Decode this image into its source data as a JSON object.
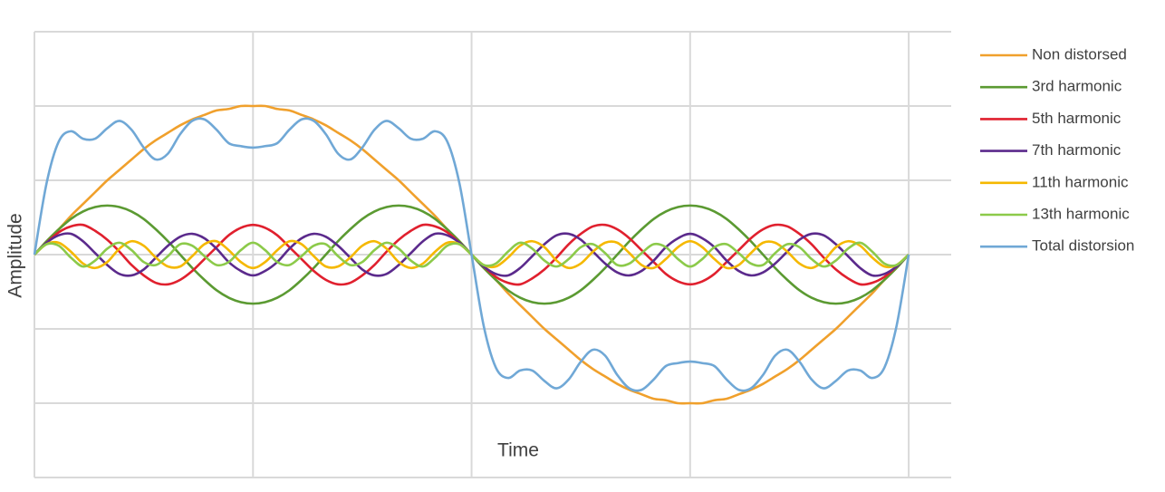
{
  "chart_data": {
    "type": "line",
    "x_label": "Time",
    "y_label": "Amplitude",
    "x": [
      0,
      5,
      10,
      15,
      20,
      25,
      30,
      35,
      40,
      45,
      50,
      55,
      60,
      65,
      70,
      75,
      80,
      85,
      90,
      95,
      100,
      105,
      110,
      115,
      120,
      125,
      130,
      135,
      140,
      145,
      150,
      155,
      160,
      165,
      170,
      175,
      180,
      185,
      190,
      195,
      200,
      205,
      210,
      215,
      220,
      225,
      230,
      235,
      240,
      245,
      250,
      255,
      260,
      265,
      270,
      275,
      280,
      285,
      290,
      295,
      300,
      305,
      310,
      315,
      320,
      325,
      330,
      335,
      340,
      345,
      350,
      355,
      360
    ],
    "xlim": [
      0,
      377.5
    ],
    "xticks": [
      0,
      90,
      180,
      270,
      360
    ],
    "ylim": [
      -1.5,
      1.5
    ],
    "yticks": [
      -1.5,
      -1,
      -0.5,
      0,
      0.5,
      1,
      1.5
    ],
    "grid": true,
    "legend": "right",
    "series": [
      {
        "name": "Non distorsed",
        "color": "#f0a02c",
        "values": [
          0,
          0.09,
          0.17,
          0.26,
          0.34,
          0.42,
          0.5,
          0.57,
          0.64,
          0.71,
          0.77,
          0.82,
          0.87,
          0.91,
          0.94,
          0.97,
          0.98,
          1,
          1,
          1,
          0.98,
          0.97,
          0.94,
          0.91,
          0.87,
          0.82,
          0.77,
          0.71,
          0.64,
          0.57,
          0.5,
          0.42,
          0.34,
          0.26,
          0.17,
          0.09,
          0,
          -0.09,
          -0.17,
          -0.26,
          -0.34,
          -0.42,
          -0.5,
          -0.57,
          -0.64,
          -0.71,
          -0.77,
          -0.82,
          -0.87,
          -0.91,
          -0.94,
          -0.97,
          -0.98,
          -1,
          -1,
          -1,
          -0.98,
          -0.97,
          -0.94,
          -0.91,
          -0.87,
          -0.82,
          -0.77,
          -0.71,
          -0.64,
          -0.57,
          -0.5,
          -0.42,
          -0.34,
          -0.26,
          -0.17,
          -0.09,
          0
        ]
      },
      {
        "name": "3rd harmonic",
        "color": "#5b9a32",
        "values": [
          0,
          0.09,
          0.17,
          0.24,
          0.29,
          0.32,
          0.33,
          0.32,
          0.29,
          0.24,
          0.17,
          0.09,
          0,
          -0.09,
          -0.17,
          -0.24,
          -0.29,
          -0.32,
          -0.33,
          -0.32,
          -0.29,
          -0.24,
          -0.17,
          -0.09,
          0,
          0.09,
          0.17,
          0.24,
          0.29,
          0.32,
          0.33,
          0.32,
          0.29,
          0.24,
          0.17,
          0.09,
          0,
          -0.09,
          -0.17,
          -0.24,
          -0.29,
          -0.32,
          -0.33,
          -0.32,
          -0.29,
          -0.24,
          -0.17,
          -0.09,
          0,
          0.09,
          0.17,
          0.24,
          0.29,
          0.32,
          0.33,
          0.32,
          0.29,
          0.24,
          0.17,
          0.09,
          0,
          -0.09,
          -0.17,
          -0.24,
          -0.29,
          -0.32,
          -0.33,
          -0.32,
          -0.29,
          -0.24,
          -0.17,
          -0.09,
          0
        ]
      },
      {
        "name": "5th harmonic",
        "color": "#e0202e",
        "values": [
          0,
          0.08,
          0.15,
          0.19,
          0.2,
          0.16,
          0.1,
          0.02,
          -0.07,
          -0.14,
          -0.19,
          -0.2,
          -0.17,
          -0.11,
          -0.03,
          0.05,
          0.13,
          0.18,
          0.2,
          0.18,
          0.13,
          0.05,
          -0.03,
          -0.11,
          -0.17,
          -0.2,
          -0.19,
          -0.14,
          -0.07,
          0.02,
          0.1,
          0.16,
          0.2,
          0.19,
          0.15,
          0.08,
          0,
          -0.08,
          -0.15,
          -0.19,
          -0.2,
          -0.16,
          -0.1,
          -0.02,
          0.07,
          0.14,
          0.19,
          0.2,
          0.17,
          0.11,
          0.03,
          -0.05,
          -0.13,
          -0.18,
          -0.2,
          -0.18,
          -0.13,
          -0.05,
          0.03,
          0.11,
          0.17,
          0.2,
          0.19,
          0.14,
          0.07,
          -0.02,
          -0.1,
          -0.16,
          -0.2,
          -0.19,
          -0.15,
          -0.08,
          0
        ]
      },
      {
        "name": "7th harmonic",
        "color": "#5b2a8c",
        "values": [
          0,
          0.08,
          0.13,
          0.14,
          0.09,
          0.01,
          -0.07,
          -0.13,
          -0.14,
          -0.1,
          -0.02,
          0.06,
          0.12,
          0.14,
          0.11,
          0.04,
          -0.05,
          -0.11,
          -0.14,
          -0.11,
          -0.05,
          0.04,
          0.11,
          0.14,
          0.12,
          0.06,
          -0.02,
          -0.1,
          -0.14,
          -0.13,
          -0.07,
          0.01,
          0.09,
          0.14,
          0.13,
          0.08,
          0,
          -0.08,
          -0.13,
          -0.14,
          -0.09,
          -0.01,
          0.07,
          0.13,
          0.14,
          0.1,
          0.02,
          -0.06,
          -0.12,
          -0.14,
          -0.11,
          -0.04,
          0.05,
          0.11,
          0.14,
          0.11,
          0.05,
          -0.04,
          -0.11,
          -0.14,
          -0.12,
          -0.06,
          0.02,
          0.1,
          0.14,
          0.13,
          0.07,
          -0.01,
          -0.09,
          -0.14,
          -0.13,
          -0.08,
          0
        ]
      },
      {
        "name": "11th harmonic",
        "color": "#f5b800",
        "values": [
          0,
          0.07,
          0.08,
          0.02,
          -0.06,
          -0.09,
          -0.05,
          0.04,
          0.09,
          0.06,
          -0.02,
          -0.08,
          -0.08,
          -0.01,
          0.07,
          0.09,
          0.03,
          -0.05,
          -0.09,
          -0.05,
          0.03,
          0.09,
          0.07,
          -0.01,
          -0.08,
          -0.08,
          -0.02,
          0.06,
          0.09,
          0.04,
          -0.05,
          -0.09,
          -0.06,
          0.02,
          0.08,
          0.07,
          0,
          -0.07,
          -0.08,
          -0.02,
          0.06,
          0.09,
          0.05,
          -0.04,
          -0.09,
          -0.06,
          0.02,
          0.08,
          0.08,
          0.01,
          -0.07,
          -0.09,
          -0.03,
          0.05,
          0.09,
          0.05,
          -0.03,
          -0.09,
          -0.07,
          0.01,
          0.08,
          0.08,
          0.02,
          -0.06,
          -0.09,
          -0.04,
          0.05,
          0.09,
          0.06,
          -0.02,
          -0.08,
          -0.07,
          0
        ]
      },
      {
        "name": "13th harmonic",
        "color": "#8cca4a",
        "values": [
          0,
          0.07,
          0.06,
          -0.02,
          -0.08,
          -0.04,
          0.04,
          0.08,
          0.03,
          -0.05,
          -0.07,
          -0.01,
          0.07,
          0.06,
          -0.01,
          -0.07,
          -0.05,
          0.03,
          0.08,
          0.03,
          -0.05,
          -0.07,
          -0.01,
          0.06,
          0.07,
          -0.01,
          -0.07,
          -0.05,
          0.03,
          0.08,
          0.04,
          -0.04,
          -0.08,
          -0.02,
          0.06,
          0.07,
          0,
          -0.07,
          -0.06,
          0.02,
          0.08,
          0.04,
          -0.04,
          -0.08,
          -0.03,
          0.05,
          0.07,
          0.01,
          -0.07,
          -0.06,
          0.01,
          0.07,
          0.05,
          -0.03,
          -0.08,
          -0.03,
          0.05,
          0.07,
          0.01,
          -0.06,
          -0.07,
          0.01,
          0.07,
          0.05,
          -0.03,
          -0.08,
          -0.04,
          0.04,
          0.08,
          0.02,
          -0.06,
          -0.07,
          0
        ]
      },
      {
        "name": "Total distorsion",
        "color": "#70a8d6",
        "values": [
          0,
          0.48,
          0.76,
          0.83,
          0.78,
          0.78,
          0.85,
          0.9,
          0.84,
          0.72,
          0.64,
          0.68,
          0.81,
          0.9,
          0.91,
          0.84,
          0.75,
          0.73,
          0.72,
          0.73,
          0.75,
          0.84,
          0.91,
          0.9,
          0.81,
          0.68,
          0.64,
          0.72,
          0.84,
          0.9,
          0.85,
          0.78,
          0.78,
          0.83,
          0.76,
          0.48,
          0,
          -0.48,
          -0.76,
          -0.83,
          -0.78,
          -0.78,
          -0.85,
          -0.9,
          -0.84,
          -0.72,
          -0.64,
          -0.68,
          -0.81,
          -0.9,
          -0.91,
          -0.84,
          -0.75,
          -0.73,
          -0.72,
          -0.73,
          -0.75,
          -0.84,
          -0.91,
          -0.9,
          -0.81,
          -0.68,
          -0.64,
          -0.72,
          -0.84,
          -0.9,
          -0.85,
          -0.78,
          -0.78,
          -0.83,
          -0.76,
          -0.48,
          0
        ]
      }
    ]
  }
}
